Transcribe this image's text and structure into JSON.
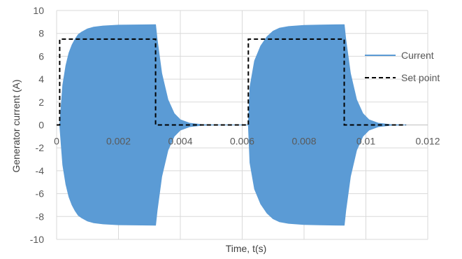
{
  "chart_data": {
    "type": "line",
    "title": "",
    "xlabel": "Time, t(s)",
    "ylabel": "Generator current (A)",
    "xlim": [
      0,
      0.012
    ],
    "ylim": [
      -10,
      10
    ],
    "x_ticks": [
      0,
      0.002,
      0.004,
      0.006,
      0.008,
      0.01,
      0.012
    ],
    "x_tick_labels": [
      "0",
      "0.002",
      "0.004",
      "0.006",
      "0.008",
      "0.01",
      "0.012"
    ],
    "y_ticks": [
      -10,
      -8,
      -6,
      -4,
      -2,
      0,
      2,
      4,
      6,
      8,
      10
    ],
    "y_tick_labels": [
      "-10",
      "-8",
      "-6",
      "-4",
      "-2",
      "0",
      "2",
      "4",
      "6",
      "8",
      "10"
    ],
    "grid": true,
    "legend_position": "right",
    "series": [
      {
        "name": "Current",
        "style": "oscillating envelope",
        "color": "#5b9bd5",
        "upper_envelope": {
          "x": [
            0.0001,
            0.0002,
            0.0003,
            0.0004,
            0.0005,
            0.0006,
            0.0007,
            0.0008,
            0.001,
            0.0012,
            0.0015,
            0.002,
            0.0025,
            0.003,
            0.0032,
            0.00325,
            0.0034,
            0.0036,
            0.0038,
            0.004,
            0.0043,
            0.0047,
            0.0052,
            0.0062,
            0.00625,
            0.0064,
            0.0066,
            0.0068,
            0.007,
            0.0072,
            0.0075,
            0.008,
            0.0085,
            0.009,
            0.0093,
            0.00935,
            0.0095,
            0.0097,
            0.0099,
            0.0101,
            0.0104,
            0.0108,
            0.0113
          ],
          "y": [
            0,
            3.5,
            5.2,
            6.3,
            7.0,
            7.5,
            7.9,
            8.1,
            8.4,
            8.55,
            8.65,
            8.72,
            8.74,
            8.75,
            8.76,
            7.5,
            4.5,
            2.2,
            1.0,
            0.45,
            0.15,
            0.03,
            0,
            0,
            3.3,
            5.6,
            6.9,
            7.7,
            8.2,
            8.45,
            8.6,
            8.7,
            8.73,
            8.75,
            8.76,
            7.5,
            4.5,
            2.2,
            1.0,
            0.45,
            0.15,
            0.03,
            0
          ]
        },
        "lower_envelope": {
          "x": [
            0.0001,
            0.0002,
            0.0003,
            0.0004,
            0.0005,
            0.0006,
            0.0007,
            0.0008,
            0.001,
            0.0012,
            0.0015,
            0.002,
            0.0025,
            0.003,
            0.0032,
            0.00325,
            0.0034,
            0.0036,
            0.0038,
            0.004,
            0.0043,
            0.0047,
            0.0052,
            0.0062,
            0.00625,
            0.0064,
            0.0066,
            0.0068,
            0.007,
            0.0072,
            0.0075,
            0.008,
            0.0085,
            0.009,
            0.0093,
            0.00935,
            0.0095,
            0.0097,
            0.0099,
            0.0101,
            0.0104,
            0.0108,
            0.0113
          ],
          "y": [
            0,
            -3.5,
            -5.2,
            -6.3,
            -7.0,
            -7.5,
            -7.9,
            -8.1,
            -8.4,
            -8.55,
            -8.65,
            -8.72,
            -8.74,
            -8.75,
            -8.76,
            -7.5,
            -4.5,
            -2.2,
            -1.0,
            -0.45,
            -0.15,
            -0.03,
            0,
            0,
            -3.3,
            -5.6,
            -6.9,
            -7.7,
            -8.2,
            -8.45,
            -8.6,
            -8.7,
            -8.73,
            -8.75,
            -8.76,
            -7.5,
            -4.5,
            -2.2,
            -1.0,
            -0.45,
            -0.15,
            -0.03,
            0
          ]
        }
      },
      {
        "name": "Set point",
        "style": "dashed",
        "color": "#000000",
        "x": [
          0,
          0.0001,
          0.0001,
          0.0032,
          0.0032,
          0.0062,
          0.0062,
          0.0093,
          0.0093,
          0.0113
        ],
        "y": [
          0,
          0,
          7.5,
          7.5,
          0,
          0,
          7.5,
          7.5,
          0,
          0
        ]
      }
    ]
  }
}
